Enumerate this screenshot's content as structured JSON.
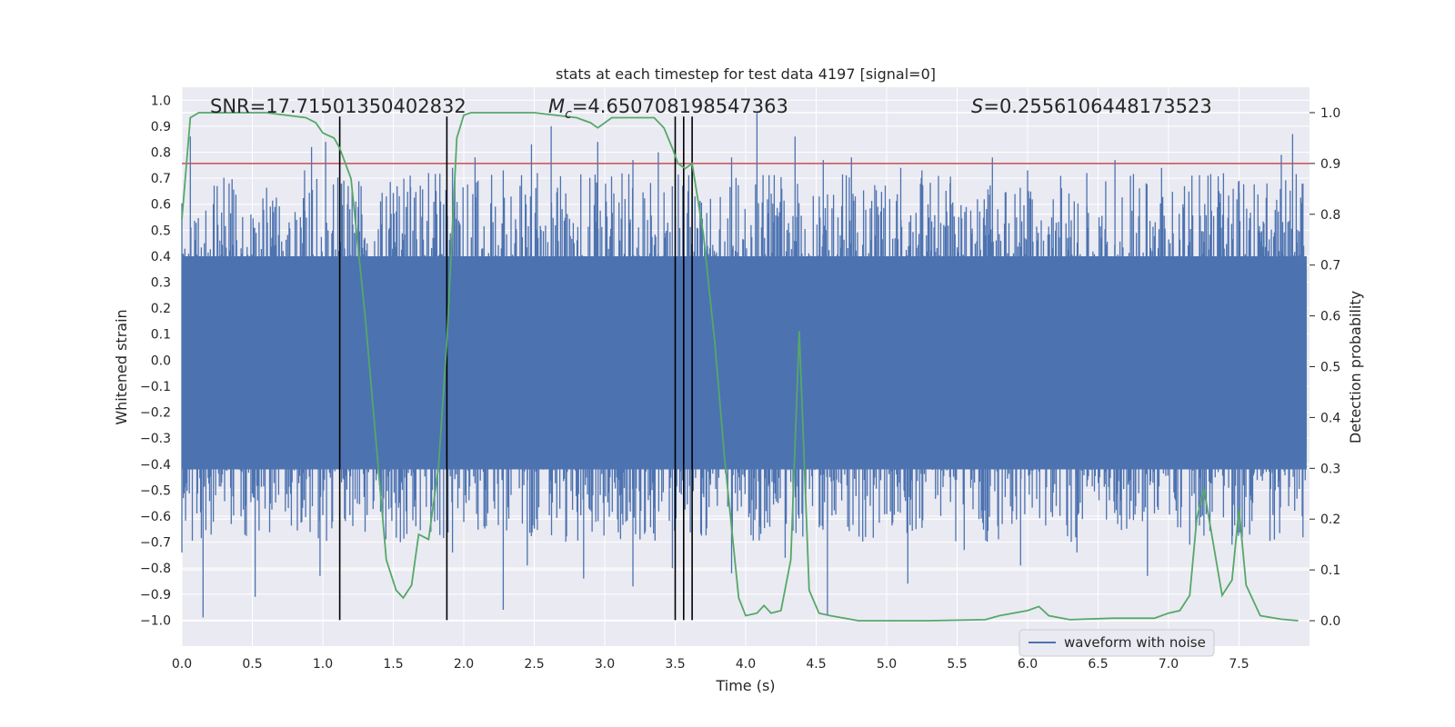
{
  "chart_data": {
    "type": "line",
    "title": "stats at each timestep for test data 4197 [signal=0]",
    "xlabel": "Time (s)",
    "ylabel_left": "Whitened strain",
    "ylabel_right": "Detection probability",
    "xlim": [
      0.0,
      8.0
    ],
    "ylim_left": [
      -1.1,
      1.05
    ],
    "ylim_right": [
      -0.05,
      1.05
    ],
    "x_ticks": [
      "0.0",
      "0.5",
      "1.0",
      "1.5",
      "2.0",
      "2.5",
      "3.0",
      "3.5",
      "4.0",
      "4.5",
      "5.0",
      "5.5",
      "6.0",
      "6.5",
      "7.0",
      "7.5"
    ],
    "y_left_ticks": [
      "1.0",
      "0.9",
      "0.8",
      "0.7",
      "0.6",
      "0.5",
      "0.4",
      "0.3",
      "0.2",
      "0.1",
      "0.0",
      "-0.1",
      "-0.2",
      "-0.3",
      "-0.4",
      "-0.5",
      "-0.6",
      "-0.7",
      "-0.8",
      "-0.9",
      "-1.0"
    ],
    "y_right_ticks": [
      "1.0",
      "0.9",
      "0.8",
      "0.7",
      "0.6",
      "0.5",
      "0.4",
      "0.3",
      "0.2",
      "0.1",
      "0.0"
    ],
    "annotations": [
      {
        "id": "snr",
        "text": "SNR=17.71501350402832",
        "x": 0.2
      },
      {
        "id": "mc",
        "text": "Mc=4.650708198547363",
        "prefix": "M",
        "subscript": "c",
        "rest": "=4.650708198547363",
        "x": 2.6
      },
      {
        "id": "s",
        "text": "S=0.2556106448173523",
        "prefix": "S",
        "rest": "=0.2556106448173523",
        "x": 5.6
      }
    ],
    "threshold": {
      "value": 0.9,
      "color": "#c44e52"
    },
    "vertical_markers": [
      1.12,
      1.88,
      3.5,
      3.56,
      3.62
    ],
    "waveform": {
      "name": "waveform with noise",
      "color": "#4c72b0",
      "band_low": -0.42,
      "band_high": 0.4,
      "positive_peaks": [
        [
          0.06,
          0.86
        ],
        [
          0.27,
          0.46
        ],
        [
          0.66,
          0.59
        ],
        [
          0.87,
          0.73
        ],
        [
          0.92,
          0.82
        ],
        [
          1.02,
          0.84
        ],
        [
          1.18,
          0.67
        ],
        [
          1.45,
          0.63
        ],
        [
          1.62,
          0.71
        ],
        [
          1.75,
          0.72
        ],
        [
          1.92,
          0.74
        ],
        [
          2.08,
          0.78
        ],
        [
          2.28,
          0.73
        ],
        [
          2.48,
          0.83
        ],
        [
          2.62,
          0.9
        ],
        [
          2.95,
          0.84
        ],
        [
          3.2,
          0.77
        ],
        [
          3.38,
          0.8
        ],
        [
          3.64,
          0.63
        ],
        [
          3.9,
          0.78
        ],
        [
          4.08,
          0.95
        ],
        [
          4.35,
          0.86
        ],
        [
          4.55,
          0.77
        ],
        [
          4.75,
          0.78
        ],
        [
          5.1,
          0.74
        ],
        [
          5.25,
          0.73
        ],
        [
          5.45,
          0.68
        ],
        [
          5.75,
          0.78
        ],
        [
          6.0,
          0.73
        ],
        [
          6.42,
          0.72
        ],
        [
          6.62,
          0.77
        ],
        [
          6.95,
          0.74
        ],
        [
          7.28,
          0.71
        ],
        [
          7.5,
          0.69
        ],
        [
          7.8,
          0.79
        ],
        [
          7.88,
          0.87
        ]
      ],
      "negative_peaks": [
        [
          0.0,
          -0.74
        ],
        [
          0.15,
          -0.99
        ],
        [
          0.35,
          -0.63
        ],
        [
          0.52,
          -0.91
        ],
        [
          0.98,
          -0.83
        ],
        [
          1.3,
          -0.66
        ],
        [
          1.55,
          -0.7
        ],
        [
          1.92,
          -0.74
        ],
        [
          2.28,
          -0.96
        ],
        [
          2.45,
          -0.79
        ],
        [
          2.85,
          -0.84
        ],
        [
          3.2,
          -0.87
        ],
        [
          3.48,
          -0.8
        ],
        [
          3.9,
          -0.82
        ],
        [
          4.28,
          -0.76
        ],
        [
          4.58,
          -0.98
        ],
        [
          4.85,
          -0.68
        ],
        [
          5.15,
          -0.86
        ],
        [
          5.55,
          -0.73
        ],
        [
          5.95,
          -0.79
        ],
        [
          6.35,
          -0.74
        ],
        [
          6.85,
          -0.83
        ],
        [
          7.15,
          -0.71
        ],
        [
          7.45,
          -0.71
        ],
        [
          7.72,
          -0.69
        ]
      ]
    },
    "detection_probability": {
      "color": "#55a868",
      "x": [
        0.0,
        0.06,
        0.12,
        0.3,
        0.6,
        0.88,
        0.95,
        1.0,
        1.08,
        1.12,
        1.2,
        1.3,
        1.45,
        1.52,
        1.57,
        1.63,
        1.68,
        1.75,
        1.82,
        1.88,
        1.95,
        2.0,
        2.05,
        2.1,
        2.3,
        2.5,
        2.8,
        2.9,
        2.95,
        3.0,
        3.05,
        3.12,
        3.2,
        3.35,
        3.42,
        3.48,
        3.52,
        3.57,
        3.62,
        3.7,
        3.78,
        3.85,
        3.95,
        4.0,
        4.08,
        4.13,
        4.18,
        4.25,
        4.32,
        4.38,
        4.45,
        4.52,
        4.6,
        4.7,
        4.8,
        4.9,
        5.0,
        5.3,
        5.7,
        5.8,
        6.0,
        6.08,
        6.15,
        6.3,
        6.6,
        6.9,
        7.0,
        7.08,
        7.15,
        7.2,
        7.25,
        7.3,
        7.38,
        7.45,
        7.5,
        7.55,
        7.65,
        7.8,
        7.92
      ],
      "y": [
        0.79,
        0.99,
        1.0,
        1.0,
        1.0,
        0.99,
        0.98,
        0.96,
        0.95,
        0.93,
        0.87,
        0.6,
        0.12,
        0.06,
        0.045,
        0.07,
        0.17,
        0.16,
        0.3,
        0.55,
        0.95,
        0.995,
        1.0,
        1.0,
        1.0,
        1.0,
        0.99,
        0.98,
        0.97,
        0.98,
        0.99,
        0.99,
        0.99,
        0.99,
        0.97,
        0.93,
        0.9,
        0.89,
        0.9,
        0.76,
        0.55,
        0.32,
        0.045,
        0.01,
        0.015,
        0.03,
        0.015,
        0.02,
        0.12,
        0.57,
        0.06,
        0.015,
        0.01,
        0.005,
        0.0,
        0.0,
        0.0,
        0.0,
        0.002,
        0.01,
        0.02,
        0.028,
        0.01,
        0.002,
        0.005,
        0.005,
        0.015,
        0.02,
        0.05,
        0.2,
        0.26,
        0.18,
        0.05,
        0.08,
        0.22,
        0.07,
        0.01,
        0.003,
        0.0
      ]
    },
    "grid": true,
    "legend": {
      "placement": "lower-right",
      "entries": [
        "waveform with noise"
      ]
    }
  }
}
